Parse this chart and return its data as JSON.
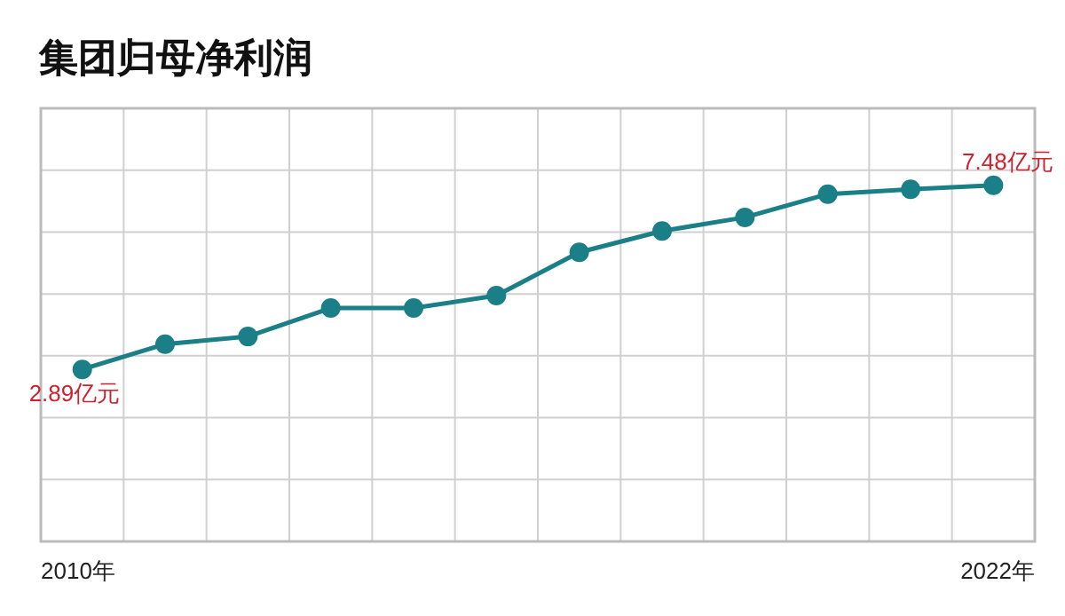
{
  "chart_data": {
    "type": "line",
    "title": "集团归母净利润",
    "categories": [
      "2010年",
      null,
      null,
      null,
      null,
      null,
      null,
      null,
      null,
      null,
      null,
      "2022年"
    ],
    "series": [
      {
        "color": "#1a7f86",
        "values": [
          2.89,
          3.52,
          3.71,
          4.42,
          4.42,
          4.73,
          5.81,
          6.34,
          6.68,
          7.26,
          7.38,
          7.48
        ],
        "value_labels": [
          "2.89亿元",
          null,
          null,
          null,
          null,
          null,
          null,
          null,
          null,
          null,
          null,
          "7.48亿元"
        ]
      }
    ],
    "ylim": [
      -1.4,
      9.4
    ],
    "grid": true,
    "marker": "circle",
    "line_style": "solid",
    "tick_labels": "x"
  }
}
